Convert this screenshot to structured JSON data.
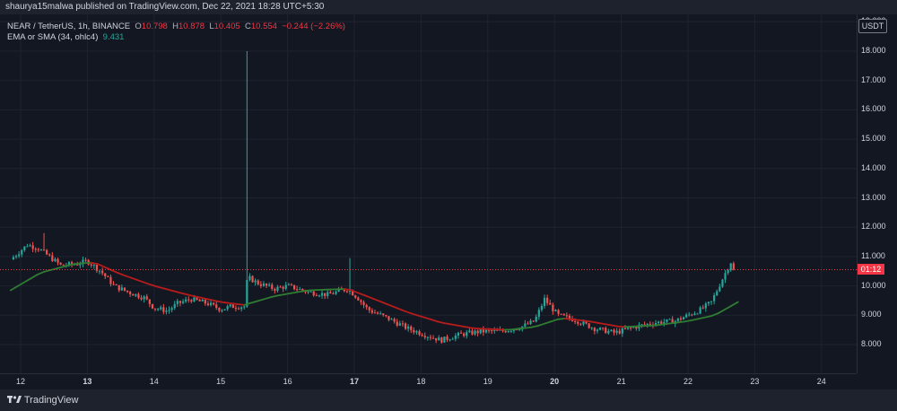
{
  "header": {
    "publisher": "shaurya15malwa published on TradingView.com, Dec 22, 2021 18:28 UTC+5:30"
  },
  "legend": {
    "symbol": "NEAR / TetherUS, 1h, BINANCE",
    "o_label": "O",
    "o_value": "10.798",
    "h_label": "H",
    "h_value": "10.878",
    "l_label": "L",
    "l_value": "10.405",
    "c_label": "C",
    "c_value": "10.554",
    "change": "−0.244 (−2.26%)",
    "ma_label": "EMA or SMA (34, ohlc4)",
    "ma_value": "9.431"
  },
  "currency_badge": "USDT",
  "price_badge": "01:12",
  "footer": {
    "brand": "TradingView"
  },
  "colors": {
    "up": "#26a69a",
    "down": "#ef5350",
    "ema_up": "#2e7d32",
    "ema_down": "#b71c1c",
    "last_price_line": "#f23645"
  },
  "chart_data": {
    "type": "candlestick",
    "y_ticks": [
      "8.000",
      "9.000",
      "10.000",
      "11.000",
      "12.000",
      "13.000",
      "14.000",
      "15.000",
      "16.000",
      "17.000",
      "18.000",
      "19.000"
    ],
    "ylim": [
      7.0,
      19.0
    ],
    "x_ticks": [
      {
        "label": "12",
        "day": 12,
        "bold": false
      },
      {
        "label": "13",
        "day": 13,
        "bold": true
      },
      {
        "label": "14",
        "day": 14,
        "bold": false
      },
      {
        "label": "15",
        "day": 15,
        "bold": false
      },
      {
        "label": "16",
        "day": 16,
        "bold": false
      },
      {
        "label": "17",
        "day": 17,
        "bold": true
      },
      {
        "label": "18",
        "day": 18,
        "bold": false
      },
      {
        "label": "19",
        "day": 19,
        "bold": false
      },
      {
        "label": "20",
        "day": 20,
        "bold": true
      },
      {
        "label": "21",
        "day": 21,
        "bold": false
      },
      {
        "label": "22",
        "day": 22,
        "bold": false
      },
      {
        "label": "23",
        "day": 23,
        "bold": false
      },
      {
        "label": "24",
        "day": 24,
        "bold": false
      }
    ],
    "last_close": 10.554,
    "close_anchors": [
      [
        11.85,
        10.9
      ],
      [
        12.1,
        11.4
      ],
      [
        12.25,
        11.3
      ],
      [
        12.4,
        11.05
      ],
      [
        12.6,
        10.7
      ],
      [
        12.85,
        10.75
      ],
      [
        13.0,
        10.85
      ],
      [
        13.2,
        10.5
      ],
      [
        13.4,
        10.0
      ],
      [
        13.6,
        9.8
      ],
      [
        13.85,
        9.6
      ],
      [
        14.0,
        9.25
      ],
      [
        14.2,
        9.15
      ],
      [
        14.35,
        9.4
      ],
      [
        14.55,
        9.55
      ],
      [
        14.8,
        9.4
      ],
      [
        15.0,
        9.2
      ],
      [
        15.15,
        9.3
      ],
      [
        15.35,
        9.3
      ],
      [
        15.4,
        10.3
      ],
      [
        15.55,
        10.1
      ],
      [
        15.8,
        9.9
      ],
      [
        16.0,
        10.0
      ],
      [
        16.3,
        9.8
      ],
      [
        16.6,
        9.7
      ],
      [
        16.9,
        9.9
      ],
      [
        17.05,
        9.6
      ],
      [
        17.2,
        9.2
      ],
      [
        17.5,
        8.9
      ],
      [
        17.8,
        8.55
      ],
      [
        18.1,
        8.3
      ],
      [
        18.3,
        8.15
      ],
      [
        18.6,
        8.35
      ],
      [
        18.9,
        8.45
      ],
      [
        19.2,
        8.45
      ],
      [
        19.5,
        8.6
      ],
      [
        19.7,
        8.8
      ],
      [
        19.85,
        9.55
      ],
      [
        20.05,
        9.0
      ],
      [
        20.3,
        8.85
      ],
      [
        20.6,
        8.55
      ],
      [
        20.9,
        8.4
      ],
      [
        21.2,
        8.6
      ],
      [
        21.5,
        8.75
      ],
      [
        21.8,
        8.8
      ],
      [
        22.0,
        9.0
      ],
      [
        22.2,
        9.2
      ],
      [
        22.35,
        9.45
      ],
      [
        22.55,
        10.4
      ],
      [
        22.65,
        10.85
      ],
      [
        22.7,
        10.554
      ]
    ],
    "spikes": [
      {
        "day": 15.38,
        "high": 18.0
      },
      {
        "day": 16.92,
        "high": 10.95
      },
      {
        "day": 12.35,
        "high": 11.8
      }
    ],
    "ema_anchors": [
      [
        11.85,
        9.85
      ],
      [
        12.3,
        10.45
      ],
      [
        12.8,
        10.75
      ],
      [
        13.1,
        10.8
      ],
      [
        13.5,
        10.4
      ],
      [
        14.0,
        10.0
      ],
      [
        14.5,
        9.7
      ],
      [
        15.0,
        9.45
      ],
      [
        15.35,
        9.35
      ],
      [
        15.8,
        9.65
      ],
      [
        16.3,
        9.85
      ],
      [
        16.9,
        9.9
      ],
      [
        17.3,
        9.55
      ],
      [
        17.8,
        9.1
      ],
      [
        18.3,
        8.75
      ],
      [
        18.8,
        8.55
      ],
      [
        19.3,
        8.5
      ],
      [
        19.7,
        8.6
      ],
      [
        20.1,
        8.9
      ],
      [
        20.5,
        8.8
      ],
      [
        21.0,
        8.6
      ],
      [
        21.5,
        8.65
      ],
      [
        22.0,
        8.8
      ],
      [
        22.4,
        9.0
      ],
      [
        22.75,
        9.45
      ]
    ]
  }
}
